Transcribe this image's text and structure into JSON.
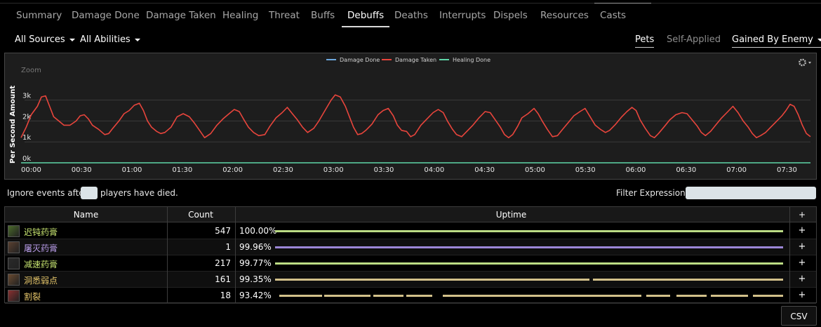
{
  "tabs": [
    {
      "label": "Summary"
    },
    {
      "label": "Damage Done"
    },
    {
      "label": "Damage Taken"
    },
    {
      "label": "Healing"
    },
    {
      "label": "Threat"
    },
    {
      "label": "Buffs"
    },
    {
      "label": "Debuffs",
      "active": true
    },
    {
      "label": "Deaths"
    },
    {
      "label": "Interrupts"
    },
    {
      "label": "Dispels"
    },
    {
      "label": "Resources"
    },
    {
      "label": "Casts"
    }
  ],
  "filters": {
    "sources": "All Sources",
    "abilities": "All Abilities",
    "pets": "Pets",
    "self_applied": "Self-Applied",
    "gained_by": "Gained By Enemy"
  },
  "chart_data": {
    "type": "line",
    "ylabel": "Per Second Amount",
    "zoom_label": "Zoom",
    "legend": [
      "Damage Done",
      "Damage Taken",
      "Healing Done"
    ],
    "legend_colors": [
      "#6ea9e0",
      "#e8453c",
      "#5fd6a8"
    ],
    "y_ticks": [
      "0k",
      "1k",
      "2k",
      "3k"
    ],
    "x_ticks": [
      "00:00",
      "00:30",
      "01:00",
      "01:30",
      "02:00",
      "02:30",
      "03:00",
      "03:30",
      "04:00",
      "04:30",
      "05:00",
      "05:30",
      "06:00",
      "06:30",
      "07:00",
      "07:30"
    ],
    "x_range_seconds": [
      0,
      490
    ],
    "y_range": [
      0,
      3500
    ],
    "series": [
      {
        "name": "Damage Taken",
        "color": "#e8453c",
        "points": [
          [
            0,
            1200
          ],
          [
            5,
            1700
          ],
          [
            10,
            2300
          ],
          [
            16,
            2700
          ],
          [
            20,
            3150
          ],
          [
            24,
            3200
          ],
          [
            28,
            2700
          ],
          [
            32,
            2200
          ],
          [
            37,
            2000
          ],
          [
            42,
            1800
          ],
          [
            48,
            1800
          ],
          [
            54,
            2000
          ],
          [
            58,
            2250
          ],
          [
            62,
            2300
          ],
          [
            66,
            2100
          ],
          [
            70,
            1800
          ],
          [
            76,
            1600
          ],
          [
            82,
            1350
          ],
          [
            86,
            1400
          ],
          [
            90,
            1650
          ],
          [
            96,
            2000
          ],
          [
            101,
            2350
          ],
          [
            106,
            2500
          ],
          [
            111,
            2750
          ],
          [
            116,
            2850
          ],
          [
            120,
            2500
          ],
          [
            124,
            2000
          ],
          [
            128,
            1700
          ],
          [
            133,
            1500
          ],
          [
            137,
            1400
          ],
          [
            141,
            1450
          ],
          [
            147,
            1700
          ],
          [
            153,
            2200
          ],
          [
            159,
            2350
          ],
          [
            165,
            2200
          ],
          [
            170,
            1900
          ],
          [
            175,
            1550
          ],
          [
            180,
            1200
          ],
          [
            186,
            1400
          ],
          [
            192,
            1800
          ],
          [
            198,
            2100
          ],
          [
            204,
            2350
          ],
          [
            209,
            2550
          ],
          [
            214,
            2450
          ],
          [
            218,
            2100
          ],
          [
            223,
            1700
          ],
          [
            228,
            1450
          ],
          [
            233,
            1300
          ],
          [
            239,
            1350
          ],
          [
            244,
            1750
          ],
          [
            250,
            2150
          ],
          [
            256,
            2400
          ],
          [
            261,
            2650
          ],
          [
            266,
            2350
          ],
          [
            271,
            2050
          ],
          [
            276,
            1700
          ],
          [
            281,
            1450
          ],
          [
            287,
            1650
          ],
          [
            292,
            2000
          ],
          [
            298,
            2500
          ],
          [
            304,
            3000
          ],
          [
            308,
            3250
          ],
          [
            313,
            3150
          ],
          [
            318,
            2700
          ],
          [
            322,
            2200
          ],
          [
            326,
            1700
          ],
          [
            330,
            1350
          ],
          [
            334,
            1400
          ],
          [
            338,
            1550
          ],
          [
            344,
            1850
          ],
          [
            350,
            2300
          ],
          [
            355,
            2500
          ],
          [
            360,
            2600
          ],
          [
            365,
            2250
          ],
          [
            369,
            1800
          ],
          [
            373,
            1550
          ],
          [
            378,
            1500
          ],
          [
            382,
            1250
          ],
          [
            386,
            1350
          ],
          [
            392,
            1800
          ],
          [
            398,
            2100
          ],
          [
            404,
            2400
          ],
          [
            409,
            2550
          ],
          [
            414,
            2400
          ],
          [
            418,
            2000
          ],
          [
            423,
            1600
          ],
          [
            427,
            1350
          ],
          [
            432,
            1250
          ],
          [
            437,
            1500
          ],
          [
            443,
            1800
          ],
          [
            449,
            2150
          ],
          [
            455,
            2450
          ],
          [
            460,
            2400
          ],
          [
            465,
            2050
          ],
          [
            470,
            1700
          ],
          [
            474,
            1350
          ],
          [
            478,
            1200
          ],
          [
            482,
            1350
          ],
          [
            487,
            1750
          ],
          [
            491,
            2150
          ],
          [
            497,
            2350
          ],
          [
            503,
            2600
          ],
          [
            507,
            2350
          ],
          [
            511,
            2000
          ],
          [
            516,
            1600
          ],
          [
            521,
            1250
          ],
          [
            526,
            1300
          ],
          [
            531,
            1600
          ],
          [
            537,
            1950
          ],
          [
            542,
            2250
          ],
          [
            548,
            2450
          ],
          [
            553,
            2600
          ],
          [
            558,
            2200
          ],
          [
            563,
            1800
          ],
          [
            568,
            1600
          ],
          [
            573,
            1450
          ],
          [
            577,
            1550
          ],
          [
            583,
            1850
          ],
          [
            589,
            2200
          ],
          [
            594,
            2450
          ],
          [
            599,
            2650
          ],
          [
            603,
            2500
          ],
          [
            607,
            2050
          ],
          [
            612,
            1650
          ],
          [
            617,
            1300
          ],
          [
            621,
            1200
          ],
          [
            625,
            1400
          ],
          [
            631,
            1750
          ],
          [
            636,
            2050
          ],
          [
            642,
            2300
          ],
          [
            648,
            2400
          ],
          [
            653,
            2350
          ],
          [
            658,
            2050
          ],
          [
            663,
            1750
          ],
          [
            667,
            1450
          ],
          [
            671,
            1300
          ],
          [
            676,
            1500
          ],
          [
            681,
            1800
          ],
          [
            687,
            2150
          ],
          [
            693,
            2450
          ],
          [
            698,
            2700
          ],
          [
            703,
            2400
          ],
          [
            708,
            2000
          ],
          [
            713,
            1700
          ],
          [
            717,
            1400
          ],
          [
            721,
            1200
          ],
          [
            725,
            1300
          ],
          [
            730,
            1450
          ],
          [
            735,
            1700
          ],
          [
            740,
            1950
          ],
          [
            746,
            2250
          ],
          [
            750,
            2500
          ],
          [
            754,
            2800
          ],
          [
            758,
            2700
          ],
          [
            762,
            2300
          ],
          [
            766,
            1800
          ],
          [
            770,
            1400
          ],
          [
            774,
            1250
          ]
        ],
        "note": "Approximate trace; x is a relative time index"
      },
      {
        "name": "Healing Done",
        "color": "#5fd6a8",
        "flat_value": 0
      }
    ]
  },
  "ignore_row": {
    "before": "Ignore events after",
    "after": "players have died.",
    "filter_label": "Filter Expression:"
  },
  "table": {
    "headers": {
      "name": "Name",
      "count": "Count",
      "uptime": "Uptime",
      "plus": "+"
    },
    "rows": [
      {
        "name": "迟钝药膏",
        "count": "547",
        "pct": "100.00%",
        "name_color": "#c5e26f",
        "bar_color": "#bcdc84",
        "icon_color": "#4a6a2a",
        "bars": [
          [
            0,
            1.0
          ]
        ]
      },
      {
        "name": "屠灭药膏",
        "count": "1",
        "pct": "99.96%",
        "name_color": "#b89ce8",
        "bar_color": "#9b86d6",
        "icon_color": "#5a4030",
        "bars": [
          [
            0,
            1.0
          ]
        ]
      },
      {
        "name": "减速药膏",
        "count": "217",
        "pct": "99.77%",
        "name_color": "#c5e26f",
        "bar_color": "#bcdc84",
        "icon_color": "#2a2a2a",
        "bars": [
          [
            0,
            1.0
          ]
        ]
      },
      {
        "name": "洞悉弱点",
        "count": "161",
        "pct": "99.35%",
        "name_color": "#e6c66a",
        "bar_color": "#d2c08a",
        "icon_color": "#6a4a30",
        "bars": [
          [
            0,
            0.619
          ],
          [
            0.625,
            1.0
          ]
        ]
      },
      {
        "name": "割裂",
        "count": "18",
        "pct": "93.42%",
        "name_color": "#e6c66a",
        "bar_color": "#d2c08a",
        "icon_color": "#8a3030",
        "bars": [
          [
            0.008,
            0.092
          ],
          [
            0.097,
            0.188
          ],
          [
            0.193,
            0.253
          ],
          [
            0.258,
            0.31
          ],
          [
            0.33,
            0.721
          ],
          [
            0.73,
            0.778
          ],
          [
            0.79,
            0.85
          ],
          [
            0.858,
            0.931
          ],
          [
            0.94,
            1.0
          ]
        ]
      }
    ]
  },
  "csv_label": "CSV"
}
